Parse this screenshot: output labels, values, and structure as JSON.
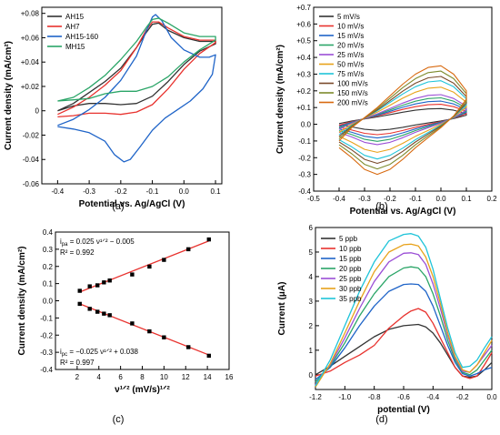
{
  "panel_captions": [
    "(a)",
    "(b)",
    "(c)",
    "(d)"
  ],
  "chart_data": [
    {
      "id": "a",
      "type": "line",
      "xlabel": "Potential vs. Ag/AgCl (V)",
      "ylabel": "Current density (mA/cm²)",
      "xlim": [
        -0.45,
        0.12
      ],
      "ylim": [
        -0.06,
        0.085
      ],
      "xticks": [
        -0.4,
        -0.3,
        -0.2,
        -0.1,
        0.0,
        0.1
      ],
      "xtick_labels": [
        "-0.4",
        "-0.3",
        "-0.2",
        "-0.1",
        "0.0",
        "0.1"
      ],
      "yticks": [
        -0.06,
        -0.04,
        -0.02,
        0,
        0.02,
        0.04,
        0.06,
        0.08
      ],
      "ytick_labels": [
        "-0.06",
        "-0.04",
        "-0.02",
        "0",
        "+0.02",
        "+0.04",
        "+0.06",
        "+0.08"
      ],
      "legend_position": "top-left",
      "series": [
        {
          "name": "AH15",
          "color": "#333333",
          "x": [
            -0.4,
            -0.35,
            -0.3,
            -0.25,
            -0.2,
            -0.15,
            -0.12,
            -0.1,
            -0.08,
            -0.05,
            0.0,
            0.05,
            0.1,
            0.1,
            0.05,
            0.0,
            -0.05,
            -0.1,
            -0.15,
            -0.2,
            -0.25,
            -0.3,
            -0.35,
            -0.4
          ],
          "y": [
            0.0,
            0.006,
            0.015,
            0.024,
            0.035,
            0.052,
            0.064,
            0.071,
            0.072,
            0.066,
            0.06,
            0.057,
            0.057,
            0.055,
            0.049,
            0.038,
            0.024,
            0.012,
            0.006,
            0.005,
            0.006,
            0.006,
            0.004,
            0.0
          ]
        },
        {
          "name": "AH7",
          "color": "#e8322e",
          "x": [
            -0.4,
            -0.35,
            -0.3,
            -0.25,
            -0.2,
            -0.15,
            -0.12,
            -0.1,
            -0.08,
            -0.05,
            0.0,
            0.05,
            0.1,
            0.1,
            0.05,
            0.0,
            -0.05,
            -0.1,
            -0.15,
            -0.2,
            -0.25,
            -0.3,
            -0.35,
            -0.4
          ],
          "y": [
            -0.003,
            0.003,
            0.011,
            0.021,
            0.033,
            0.052,
            0.066,
            0.073,
            0.073,
            0.068,
            0.061,
            0.058,
            0.058,
            0.056,
            0.047,
            0.034,
            0.018,
            0.005,
            -0.001,
            -0.003,
            -0.002,
            -0.002,
            -0.004,
            -0.005
          ]
        },
        {
          "name": "AH15-160",
          "color": "#1f64c8",
          "x": [
            -0.4,
            -0.35,
            -0.3,
            -0.25,
            -0.2,
            -0.15,
            -0.12,
            -0.1,
            -0.09,
            -0.07,
            -0.04,
            0.0,
            0.05,
            0.08,
            0.1,
            0.09,
            0.06,
            0.02,
            -0.02,
            -0.06,
            -0.1,
            -0.14,
            -0.17,
            -0.19,
            -0.22,
            -0.25,
            -0.3,
            -0.35,
            -0.4
          ],
          "y": [
            -0.012,
            -0.007,
            0.001,
            0.011,
            0.025,
            0.045,
            0.065,
            0.077,
            0.079,
            0.074,
            0.06,
            0.05,
            0.044,
            0.044,
            0.046,
            0.03,
            0.018,
            0.008,
            0.001,
            -0.006,
            -0.016,
            -0.03,
            -0.04,
            -0.042,
            -0.036,
            -0.025,
            -0.018,
            -0.015,
            -0.013
          ]
        },
        {
          "name": "MH15",
          "color": "#2aa567",
          "x": [
            -0.4,
            -0.35,
            -0.3,
            -0.25,
            -0.2,
            -0.15,
            -0.12,
            -0.1,
            -0.08,
            -0.05,
            0.0,
            0.05,
            0.1,
            0.1,
            0.05,
            0.0,
            -0.05,
            -0.1,
            -0.15,
            -0.2,
            -0.25,
            -0.3,
            -0.35,
            -0.4
          ],
          "y": [
            0.008,
            0.011,
            0.019,
            0.029,
            0.042,
            0.057,
            0.068,
            0.075,
            0.076,
            0.072,
            0.064,
            0.061,
            0.061,
            0.058,
            0.05,
            0.04,
            0.028,
            0.02,
            0.016,
            0.016,
            0.014,
            0.01,
            0.009,
            0.008
          ]
        }
      ]
    },
    {
      "id": "b",
      "type": "line",
      "xlabel": "Potential vs. Ag/AgCl (V)",
      "ylabel": "Current density (mA/cm²)",
      "xlim": [
        -0.5,
        0.2
      ],
      "ylim": [
        -0.4,
        0.7
      ],
      "xticks": [
        -0.5,
        -0.4,
        -0.3,
        -0.2,
        -0.1,
        0.0,
        0.1,
        0.2
      ],
      "xtick_labels": [
        "-0.5",
        "-0.4",
        "-0.3",
        "-0.2",
        "-0.1",
        "0.0",
        "0.1",
        "0.2"
      ],
      "yticks": [
        -0.4,
        -0.3,
        -0.2,
        -0.1,
        0.0,
        0.1,
        0.2,
        0.3,
        0.4,
        0.5,
        0.6,
        0.7
      ],
      "ytick_labels": [
        "-0.4",
        "-0.3",
        "-0.2",
        "-0.1",
        "0.0",
        "+0.1",
        "+0.2",
        "+0.3",
        "+0.4",
        "+0.5",
        "+0.6",
        "+0.7"
      ],
      "legend_position": "top-left",
      "series": [
        {
          "name": "5 mV/s",
          "color": "#333333",
          "scale": 0.2
        },
        {
          "name": "10 mV/s",
          "color": "#e8322e",
          "scale": 0.28
        },
        {
          "name": "15 mV/s",
          "color": "#1f64c8",
          "scale": 0.34
        },
        {
          "name": "20 mV/s",
          "color": "#2aa567",
          "scale": 0.4
        },
        {
          "name": "25 mV/s",
          "color": "#9b4fd6",
          "scale": 0.46
        },
        {
          "name": "50 mV/s",
          "color": "#e8a21a",
          "scale": 0.6
        },
        {
          "name": "75 mV/s",
          "color": "#1fc4d9",
          "scale": 0.72
        },
        {
          "name": "100 mV/s",
          "color": "#7a4a2a",
          "scale": 0.8
        },
        {
          "name": "150 mV/s",
          "color": "#7d8a2c",
          "scale": 0.9
        },
        {
          "name": "200 mV/s",
          "color": "#d86a10",
          "scale": 1.0
        }
      ],
      "cycle_template": {
        "x": [
          -0.4,
          -0.35,
          -0.3,
          -0.25,
          -0.2,
          -0.15,
          -0.1,
          -0.05,
          0.0,
          0.05,
          0.1,
          0.1,
          0.05,
          0.0,
          -0.05,
          -0.1,
          -0.15,
          -0.2,
          -0.25,
          -0.3,
          -0.35,
          -0.4
        ],
        "y": [
          -0.1,
          -0.02,
          0.04,
          0.1,
          0.17,
          0.24,
          0.3,
          0.34,
          0.35,
          0.3,
          0.2,
          0.15,
          0.05,
          -0.02,
          -0.08,
          -0.14,
          -0.21,
          -0.27,
          -0.3,
          -0.27,
          -0.2,
          -0.14
        ]
      }
    },
    {
      "id": "c",
      "type": "scatter",
      "xlabel": "ν¹ᐟ² (mV/s)¹ᐟ²",
      "ylabel": "Current density (mA/cm²)",
      "xlim": [
        0,
        16
      ],
      "ylim": [
        -0.4,
        0.4
      ],
      "xticks": [
        2,
        4,
        6,
        8,
        10,
        12,
        14,
        16
      ],
      "xtick_labels": [
        "2",
        "4",
        "6",
        "8",
        "10",
        "12",
        "14",
        "16"
      ],
      "yticks": [
        -0.4,
        -0.3,
        -0.2,
        -0.1,
        0.0,
        0.1,
        0.2,
        0.3,
        0.4
      ],
      "ytick_labels": [
        "-0.4",
        "-0.3",
        "-0.2",
        "-0.1",
        "0.0",
        "0.1",
        "0.2",
        "0.3",
        "0.4"
      ],
      "x": [
        2.24,
        3.16,
        3.87,
        4.47,
        5.0,
        7.07,
        8.66,
        10.0,
        12.25,
        14.14
      ],
      "series": [
        {
          "name": "ipa",
          "values": [
            0.058,
            0.084,
            0.09,
            0.107,
            0.118,
            0.153,
            0.199,
            0.238,
            0.3,
            0.357
          ],
          "fit": [
            0.025,
            -0.005
          ]
        },
        {
          "name": "ipc",
          "values": [
            -0.018,
            -0.047,
            -0.064,
            -0.075,
            -0.084,
            -0.132,
            -0.178,
            -0.213,
            -0.27,
            -0.32
          ],
          "fit": [
            -0.025,
            0.038
          ]
        }
      ],
      "annotations": {
        "ipa_eq_main": "i",
        "ipa_eq_sub": "pa",
        "ipa_eq_rest": " = 0.025 ν¹ᐟ² − 0.005",
        "ipa_r2": "R² = 0.992",
        "ipc_eq_main": "i",
        "ipc_eq_sub": "pc",
        "ipc_eq_rest": " = −0.025 ν¹ᐟ² + 0.038",
        "ipc_r2": "R² = 0.997"
      }
    },
    {
      "id": "d",
      "type": "line",
      "xlabel": "potential (V)",
      "ylabel": "Current (μA)",
      "xlim": [
        -1.2,
        0.0
      ],
      "ylim": [
        -0.6,
        6.0
      ],
      "xticks": [
        -1.2,
        -1.0,
        -0.8,
        -0.6,
        -0.4,
        -0.2,
        0.0
      ],
      "xtick_labels": [
        "-1.2",
        "-1.0",
        "-0.8",
        "-0.6",
        "-0.4",
        "-0.2",
        "0.0"
      ],
      "yticks": [
        0,
        1,
        2,
        3,
        4,
        5,
        6
      ],
      "ytick_labels": [
        "0",
        "1",
        "2",
        "3",
        "4",
        "5",
        "6"
      ],
      "legend_position": "top-left",
      "series": [
        {
          "name": "5 ppb",
          "color": "#333333",
          "x": [
            -1.2,
            -1.1,
            -1.0,
            -0.9,
            -0.8,
            -0.7,
            -0.6,
            -0.5,
            -0.45,
            -0.4,
            -0.35,
            -0.3,
            -0.25,
            -0.2,
            -0.15,
            -0.1,
            -0.05,
            0.0
          ],
          "y": [
            0.0,
            0.35,
            0.75,
            1.15,
            1.55,
            1.85,
            2.0,
            2.05,
            1.95,
            1.7,
            1.3,
            0.8,
            0.3,
            -0.05,
            -0.1,
            -0.05,
            0.2,
            0.5
          ]
        },
        {
          "name": "10 ppb",
          "color": "#e8322e",
          "x": [
            -1.2,
            -1.1,
            -1.0,
            -0.9,
            -0.8,
            -0.7,
            -0.6,
            -0.55,
            -0.5,
            -0.45,
            -0.4,
            -0.35,
            -0.3,
            -0.25,
            -0.2,
            -0.15,
            -0.1,
            -0.05,
            0.0
          ],
          "y": [
            -0.05,
            0.15,
            0.5,
            0.8,
            1.2,
            1.9,
            2.4,
            2.6,
            2.7,
            2.55,
            2.1,
            1.5,
            0.9,
            0.3,
            -0.05,
            -0.15,
            -0.05,
            0.4,
            0.9
          ]
        },
        {
          "name": "15 ppb",
          "color": "#1f64c8",
          "x": [
            -1.2,
            -1.1,
            -1.0,
            -0.9,
            -0.8,
            -0.7,
            -0.6,
            -0.55,
            -0.5,
            -0.45,
            -0.4,
            -0.35,
            -0.3,
            -0.25,
            -0.2,
            -0.15,
            -0.1,
            -0.05,
            0.0
          ],
          "y": [
            -0.2,
            0.3,
            1.1,
            2.0,
            2.8,
            3.4,
            3.68,
            3.7,
            3.68,
            3.4,
            2.8,
            2.0,
            1.2,
            0.5,
            0.05,
            -0.05,
            0.05,
            0.2,
            0.3
          ]
        },
        {
          "name": "20 ppb",
          "color": "#2aa567",
          "x": [
            -1.2,
            -1.1,
            -1.0,
            -0.9,
            -0.8,
            -0.7,
            -0.6,
            -0.55,
            -0.5,
            -0.45,
            -0.4,
            -0.35,
            -0.3,
            -0.25,
            -0.2,
            -0.15,
            -0.1,
            -0.05,
            0.0
          ],
          "y": [
            -0.3,
            0.35,
            1.3,
            2.4,
            3.3,
            4.0,
            4.35,
            4.4,
            4.35,
            4.0,
            3.3,
            2.4,
            1.4,
            0.6,
            0.1,
            0.0,
            0.2,
            0.6,
            1.0
          ]
        },
        {
          "name": "25 ppb",
          "color": "#9b4fd6",
          "x": [
            -1.2,
            -1.1,
            -1.0,
            -0.9,
            -0.8,
            -0.7,
            -0.6,
            -0.55,
            -0.5,
            -0.45,
            -0.4,
            -0.35,
            -0.3,
            -0.25,
            -0.2,
            -0.15,
            -0.1,
            -0.05,
            0.0
          ],
          "y": [
            -0.4,
            0.4,
            1.5,
            2.7,
            3.8,
            4.6,
            4.95,
            4.97,
            4.9,
            4.5,
            3.7,
            2.7,
            1.6,
            0.7,
            0.15,
            0.1,
            0.4,
            0.8,
            1.2
          ]
        },
        {
          "name": "30 ppb",
          "color": "#e8a21a",
          "x": [
            -1.2,
            -1.1,
            -1.0,
            -0.9,
            -0.8,
            -0.7,
            -0.6,
            -0.55,
            -0.5,
            -0.45,
            -0.4,
            -0.35,
            -0.3,
            -0.25,
            -0.2,
            -0.15,
            -0.1,
            -0.05,
            0.0
          ],
          "y": [
            -0.5,
            0.45,
            1.7,
            3.0,
            4.2,
            5.0,
            5.3,
            5.32,
            5.25,
            4.8,
            4.0,
            2.9,
            1.7,
            0.75,
            0.2,
            0.1,
            0.4,
            0.9,
            1.4
          ]
        },
        {
          "name": "35 ppb",
          "color": "#1fc4d9",
          "x": [
            -1.2,
            -1.1,
            -1.0,
            -0.9,
            -0.8,
            -0.7,
            -0.6,
            -0.55,
            -0.5,
            -0.45,
            -0.4,
            -0.35,
            -0.3,
            -0.25,
            -0.2,
            -0.15,
            -0.1,
            -0.05,
            0.0
          ],
          "y": [
            -0.45,
            0.6,
            2.0,
            3.4,
            4.6,
            5.45,
            5.72,
            5.75,
            5.65,
            5.2,
            4.3,
            3.1,
            1.9,
            0.9,
            0.3,
            0.35,
            0.6,
            1.1,
            1.55
          ]
        }
      ]
    }
  ]
}
